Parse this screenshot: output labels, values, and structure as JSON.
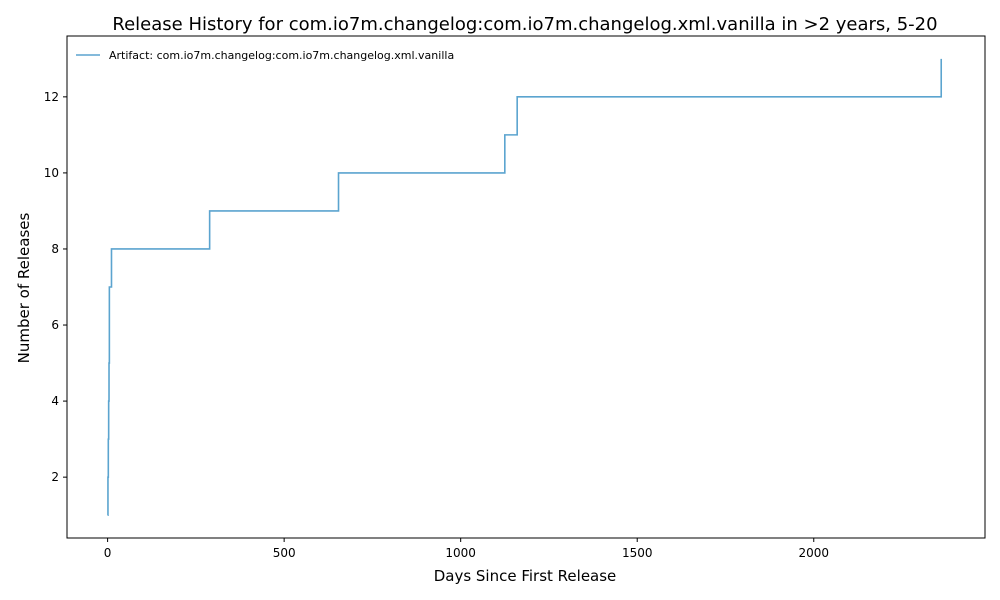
{
  "chart_data": {
    "type": "line",
    "step": true,
    "title": "Release History for com.io7m.changelog:com.io7m.changelog.xml.vanilla in >2 years, 5-20",
    "xlabel": "Days Since First Release",
    "ylabel": "Number of Releases",
    "xlim": [
      -115,
      2485
    ],
    "ylim": [
      0.4,
      13.6
    ],
    "xticks": [
      0,
      500,
      1000,
      1500,
      2000
    ],
    "yticks": [
      2,
      4,
      6,
      8,
      10,
      12
    ],
    "grid": false,
    "legend_position": "top-left",
    "series": [
      {
        "name": "Artifact: com.io7m.changelog:com.io7m.changelog.xml.vanilla",
        "color": "#5ba4cf",
        "x": [
          0,
          1,
          2,
          3,
          4,
          5,
          11,
          289,
          654,
          1125,
          1160,
          2361
        ],
        "y": [
          1,
          2,
          3,
          4,
          5,
          7,
          8,
          9,
          10,
          11,
          12,
          13
        ]
      }
    ]
  }
}
